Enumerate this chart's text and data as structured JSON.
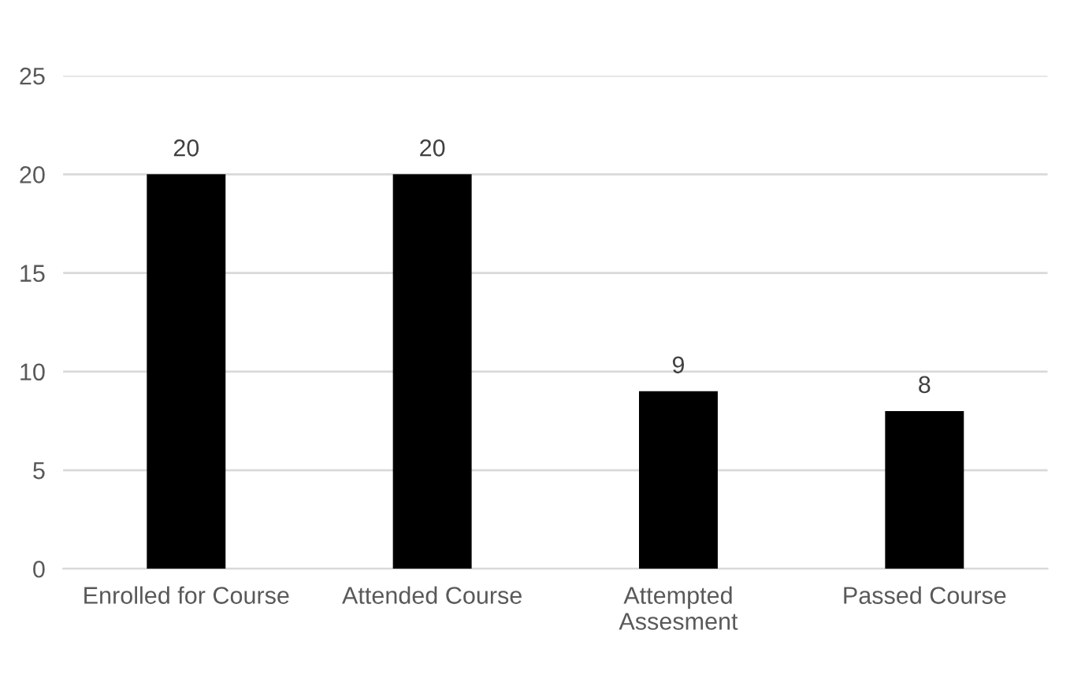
{
  "chart_data": {
    "type": "bar",
    "categories": [
      "Enrolled for Course",
      "Attended Course",
      "Attempted\nAssesment",
      "Passed Course"
    ],
    "values": [
      20,
      20,
      9,
      8
    ],
    "color": "#000000",
    "ylim": [
      0,
      25
    ],
    "yticks": [
      0,
      5,
      10,
      15,
      20,
      25
    ],
    "grid": "y",
    "data_labels": true
  }
}
